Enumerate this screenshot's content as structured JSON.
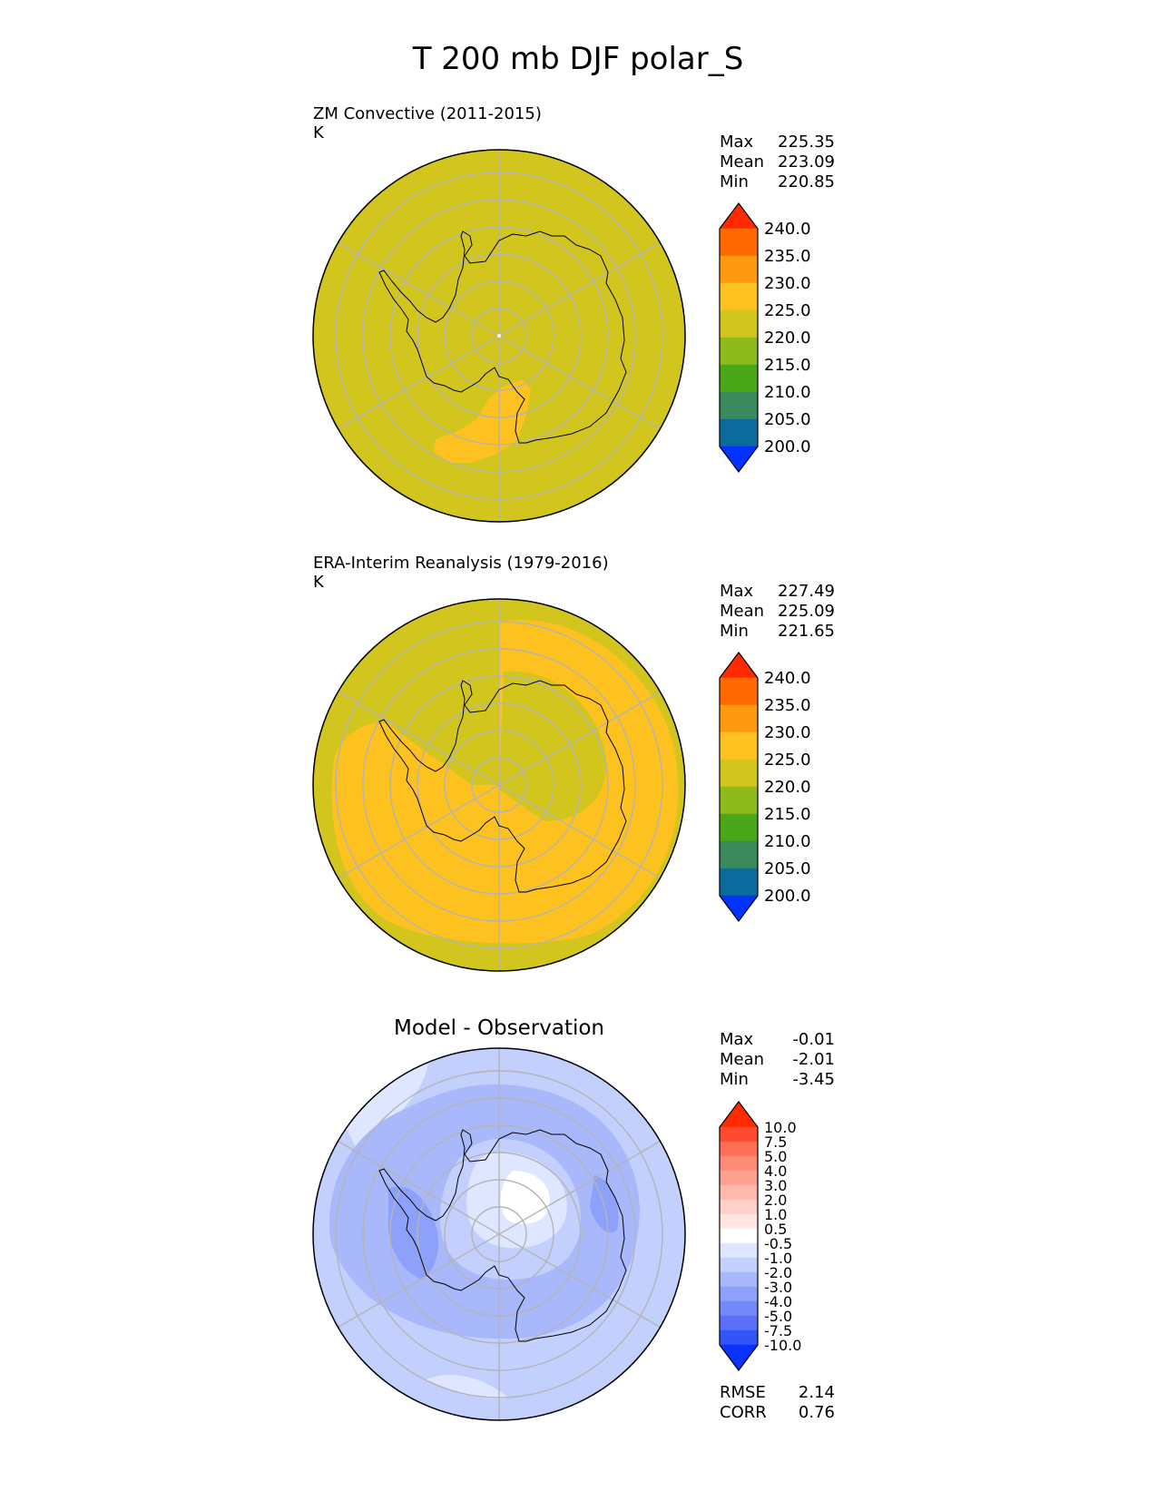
{
  "figure": {
    "title": "T 200 mb DJF polar_S"
  },
  "panels": [
    {
      "name": "model",
      "title": "ZM Convective (2011-2015)",
      "units": "K",
      "stats": [
        {
          "label": "Max",
          "value": "225.35"
        },
        {
          "label": "Mean",
          "value": "223.09"
        },
        {
          "label": "Min",
          "value": "220.85"
        }
      ],
      "colorbar": {
        "labels": [
          "240.0",
          "235.0",
          "230.0",
          "225.0",
          "220.0",
          "215.0",
          "210.0",
          "205.0",
          "200.0"
        ],
        "colors": [
          "#ff2a00",
          "#ff6a00",
          "#ff9a10",
          "#fdc21f",
          "#d1c51e",
          "#8fba1c",
          "#4aa71a",
          "#3a8a5e",
          "#0b6b9c",
          "#0033ff"
        ]
      },
      "base_color": "#d1c51e"
    },
    {
      "name": "observation",
      "title": "ERA-Interim Reanalysis (1979-2016)",
      "units": "K",
      "stats": [
        {
          "label": "Max",
          "value": "227.49"
        },
        {
          "label": "Mean",
          "value": "225.09"
        },
        {
          "label": "Min",
          "value": "221.65"
        }
      ],
      "colorbar": {
        "labels": [
          "240.0",
          "235.0",
          "230.0",
          "225.0",
          "220.0",
          "215.0",
          "210.0",
          "205.0",
          "200.0"
        ],
        "colors": [
          "#ff2a00",
          "#ff6a00",
          "#ff9a10",
          "#fdc21f",
          "#d1c51e",
          "#8fba1c",
          "#4aa71a",
          "#3a8a5e",
          "#0b6b9c",
          "#0033ff"
        ]
      },
      "base_color": "#d1c51e"
    },
    {
      "name": "difference",
      "title": "Model - Observation",
      "stats": [
        {
          "label": "Max",
          "value": "-0.01"
        },
        {
          "label": "Mean",
          "value": "-2.01"
        },
        {
          "label": "Min",
          "value": "-3.45"
        }
      ],
      "colorbar": {
        "labels": [
          "10.0",
          "7.5",
          "5.0",
          "4.0",
          "3.0",
          "2.0",
          "1.0",
          "0.5",
          "-0.5",
          "-1.0",
          "-2.0",
          "-3.0",
          "-4.0",
          "-5.0",
          "-7.5",
          "-10.0"
        ],
        "colors": [
          "#ff2a00",
          "#ff4a30",
          "#ff6f55",
          "#ff8a75",
          "#ffa090",
          "#ffb8aa",
          "#ffcfc8",
          "#ffe6e2",
          "#ffffff",
          "#dfe6ff",
          "#c3cffc",
          "#a9b8fb",
          "#8ea1fa",
          "#7489f9",
          "#5a70f8",
          "#3355f8",
          "#0a33ff"
        ]
      },
      "base_color": "#c3cffc",
      "metrics": [
        {
          "label": "RMSE",
          "value": "2.14"
        },
        {
          "label": "CORR",
          "value": "0.76"
        }
      ]
    }
  ]
}
